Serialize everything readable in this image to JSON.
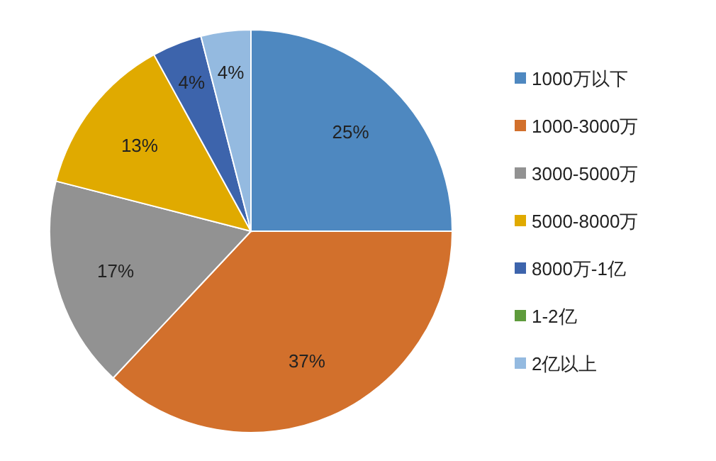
{
  "chart_data": {
    "type": "pie",
    "categories": [
      "1000万以下",
      "1000-3000万",
      "3000-5000万",
      "5000-8000万",
      "8000万-1亿",
      "1-2亿",
      "2亿以上"
    ],
    "values": [
      25,
      37,
      17,
      13,
      4,
      0,
      4
    ],
    "colors": [
      "#4e88c0",
      "#d2702c",
      "#929292",
      "#e0aa00",
      "#3d64ac",
      "#5e9b3c",
      "#94bae0"
    ],
    "value_labels": [
      "25%",
      "37%",
      "17%",
      "13%",
      "4%",
      null,
      "4%"
    ],
    "legend": "right"
  }
}
